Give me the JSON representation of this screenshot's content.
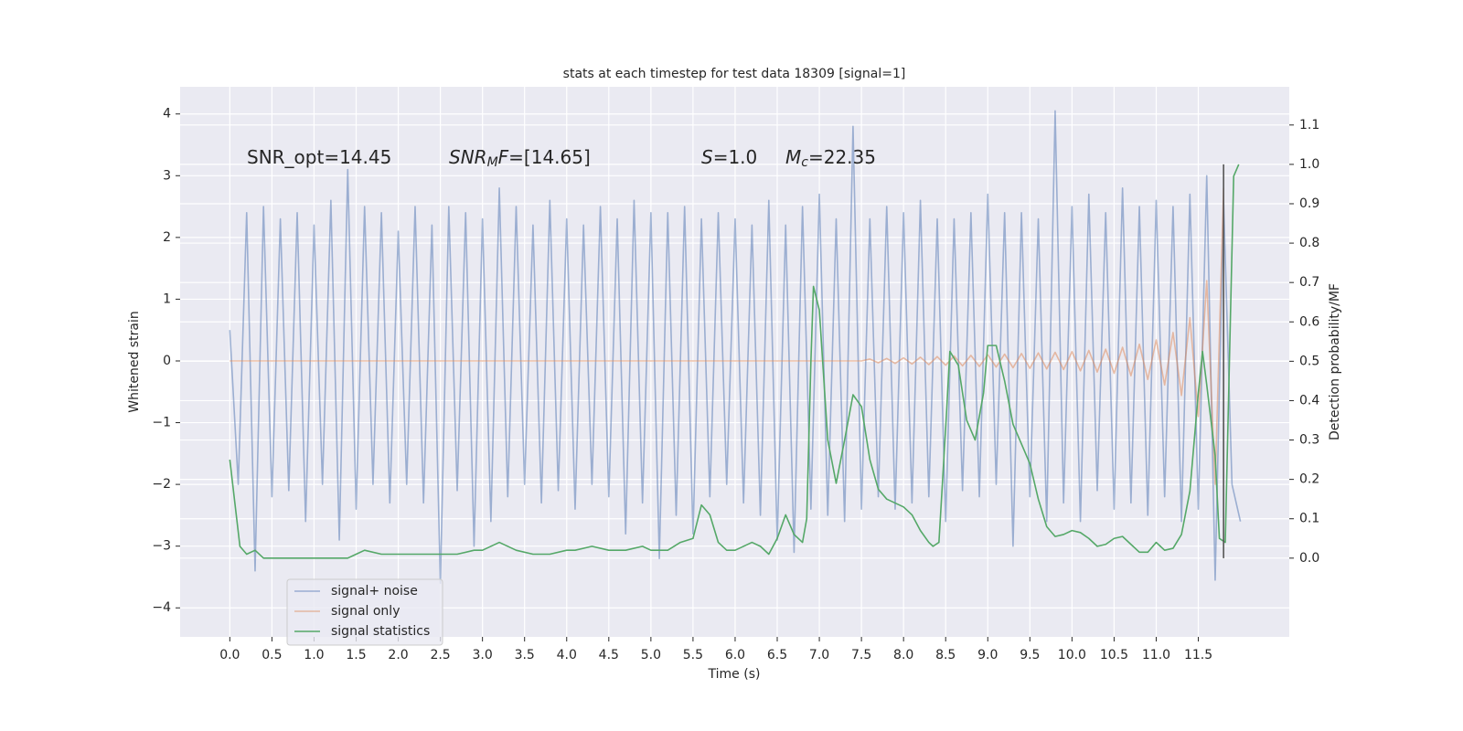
{
  "chart_data": {
    "type": "line",
    "title": "stats at each timestep for test data 18309 [signal=1]",
    "xlabel": "Time (s)",
    "ylabel": "Whitened strain",
    "y2label": "Detection probability/MF",
    "grid": true,
    "legend": "lower left",
    "xlim": [
      -0.59,
      12.58
    ],
    "ylim": [
      -4.47,
      4.44
    ],
    "y2lim": [
      -0.2,
      1.197
    ],
    "xticks": [
      {
        "value": 0,
        "label": "0.0"
      },
      0.5,
      {
        "value": 1,
        "label": "1.0"
      },
      1.5,
      {
        "value": 2,
        "label": "2.0"
      },
      2.5,
      {
        "value": 3,
        "label": "3.0"
      },
      3.5,
      {
        "value": 4,
        "label": "4.0"
      },
      4.5,
      {
        "value": 5,
        "label": "5.0"
      },
      5.5,
      {
        "value": 6,
        "label": "6.0"
      },
      6.5,
      {
        "value": 7,
        "label": "7.0"
      },
      7.5,
      {
        "value": 8,
        "label": "8.0"
      },
      8.5,
      {
        "value": 9,
        "label": "9.0"
      },
      9.5,
      {
        "value": 10,
        "label": "10.0"
      },
      10.5,
      {
        "value": 11,
        "label": "11.0"
      },
      11.5
    ],
    "yticks": [
      {
        "value": -4,
        "label": "−4"
      },
      {
        "value": -3,
        "label": "−3"
      },
      {
        "value": -2,
        "label": "−2"
      },
      {
        "value": -1,
        "label": "−1"
      },
      0,
      1,
      2,
      3,
      4
    ],
    "y2ticks": [
      {
        "value": 0,
        "label": "0.0"
      },
      0.1,
      0.2,
      0.3,
      0.4,
      0.5,
      0.6,
      0.7,
      0.8,
      0.9,
      {
        "value": 1,
        "label": "1.0"
      },
      1.1
    ],
    "annotations": [
      [
        {
          "text": "SNR_opt=14.45"
        }
      ],
      [
        {
          "text": "SNR",
          "style": "italic"
        },
        {
          "text": "M",
          "style": "italic-sub"
        },
        {
          "text": "F",
          "style": "italic"
        },
        {
          "text": "=[14.65]"
        }
      ],
      [
        {
          "text": "S",
          "style": "italic"
        },
        {
          "text": "=1.0"
        }
      ],
      [
        {
          "text": "M",
          "style": "italic"
        },
        {
          "text": "c",
          "style": "italic-sub"
        },
        {
          "text": "=22.35"
        }
      ]
    ],
    "vline": {
      "x": 11.8,
      "y2_range": [
        0,
        1
      ],
      "color": "#555555"
    },
    "series": [
      {
        "name": "signal+ noise",
        "color": "#4c72b0",
        "alpha": 0.5,
        "x": [
          0.0,
          0.1,
          0.2,
          0.3,
          0.4,
          0.5,
          0.6,
          0.7,
          0.8,
          0.9,
          1.0,
          1.1,
          1.2,
          1.3,
          1.4,
          1.5,
          1.6,
          1.7,
          1.8,
          1.9,
          2.0,
          2.1,
          2.2,
          2.3,
          2.4,
          2.5,
          2.6,
          2.7,
          2.8,
          2.9,
          3.0,
          3.1,
          3.2,
          3.3,
          3.4,
          3.5,
          3.6,
          3.7,
          3.8,
          3.9,
          4.0,
          4.1,
          4.2,
          4.3,
          4.4,
          4.5,
          4.6,
          4.7,
          4.8,
          4.9,
          5.0,
          5.1,
          5.2,
          5.3,
          5.4,
          5.5,
          5.6,
          5.7,
          5.8,
          5.9,
          6.0,
          6.1,
          6.2,
          6.3,
          6.4,
          6.5,
          6.6,
          6.7,
          6.8,
          6.9,
          7.0,
          7.1,
          7.2,
          7.3,
          7.4,
          7.5,
          7.6,
          7.7,
          7.8,
          7.9,
          8.0,
          8.1,
          8.2,
          8.3,
          8.4,
          8.5,
          8.6,
          8.7,
          8.8,
          8.9,
          9.0,
          9.1,
          9.2,
          9.3,
          9.4,
          9.5,
          9.6,
          9.7,
          9.8,
          9.9,
          10.0,
          10.1,
          10.2,
          10.3,
          10.4,
          10.5,
          10.6,
          10.7,
          10.8,
          10.9,
          11.0,
          11.1,
          11.2,
          11.3,
          11.4,
          11.5,
          11.6,
          11.7,
          11.8,
          11.9,
          12.0
        ],
        "values": [
          0.5,
          -2.0,
          2.4,
          -3.4,
          2.5,
          -2.2,
          2.3,
          -2.1,
          2.4,
          -2.6,
          2.2,
          -2.0,
          2.6,
          -2.9,
          3.1,
          -2.4,
          2.5,
          -2.0,
          2.4,
          -2.3,
          2.1,
          -2.0,
          2.5,
          -2.3,
          2.2,
          -3.6,
          2.5,
          -2.1,
          2.4,
          -3.0,
          2.3,
          -2.6,
          2.8,
          -2.2,
          2.5,
          -2.0,
          2.2,
          -2.3,
          2.6,
          -2.1,
          2.3,
          -2.4,
          2.2,
          -2.0,
          2.5,
          -2.2,
          2.3,
          -2.8,
          2.6,
          -2.3,
          2.4,
          -3.2,
          2.4,
          -2.5,
          2.5,
          -2.8,
          2.3,
          -2.2,
          2.4,
          -2.0,
          2.3,
          -2.3,
          2.2,
          -2.5,
          2.6,
          -2.9,
          2.2,
          -3.1,
          2.5,
          -2.4,
          2.7,
          -2.5,
          2.3,
          -2.6,
          3.8,
          -2.4,
          2.3,
          -2.2,
          2.5,
          -2.4,
          2.4,
          -2.3,
          2.6,
          -2.2,
          2.3,
          -2.6,
          2.3,
          -2.1,
          2.4,
          -2.2,
          2.7,
          -2.0,
          2.4,
          -3.0,
          2.4,
          -2.2,
          2.3,
          -2.6,
          4.05,
          -2.3,
          2.5,
          -2.6,
          2.7,
          -2.1,
          2.4,
          -2.4,
          2.8,
          -2.3,
          2.5,
          -2.5,
          2.6,
          -2.2,
          2.5,
          -2.6,
          2.7,
          -2.4,
          3.0,
          -3.55,
          2.6,
          -2.0,
          -2.6
        ]
      },
      {
        "name": "signal only",
        "color": "#dd8452",
        "alpha": 0.5,
        "x": [
          0.0,
          7.5,
          7.6,
          7.7,
          7.8,
          7.9,
          8.0,
          8.1,
          8.2,
          8.3,
          8.4,
          8.5,
          8.6,
          8.7,
          8.8,
          8.9,
          9.0,
          9.1,
          9.2,
          9.3,
          9.4,
          9.5,
          9.6,
          9.7,
          9.8,
          9.9,
          10.0,
          10.1,
          10.2,
          10.3,
          10.4,
          10.5,
          10.6,
          10.7,
          10.8,
          10.9,
          11.0,
          11.1,
          11.2,
          11.3,
          11.4,
          11.5,
          11.6,
          11.7,
          11.8
        ],
        "values": [
          0,
          0,
          0.03,
          -0.03,
          0.04,
          -0.04,
          0.05,
          -0.05,
          0.06,
          -0.06,
          0.07,
          -0.07,
          0.08,
          -0.08,
          0.09,
          -0.09,
          0.1,
          -0.1,
          0.11,
          -0.11,
          0.12,
          -0.12,
          0.13,
          -0.13,
          0.14,
          -0.14,
          0.15,
          -0.16,
          0.17,
          -0.18,
          0.19,
          -0.2,
          0.22,
          -0.24,
          0.27,
          -0.3,
          0.34,
          -0.39,
          0.46,
          -0.56,
          0.7,
          -0.9,
          1.3,
          -2.0,
          2.8
        ]
      },
      {
        "name": "signal statistics",
        "color": "#55a868",
        "alpha": 1,
        "axis": "y2",
        "x": [
          0.0,
          0.12,
          0.2,
          0.3,
          0.4,
          0.6,
          0.8,
          1.0,
          1.2,
          1.4,
          1.5,
          1.6,
          1.8,
          2.0,
          2.2,
          2.5,
          2.7,
          2.9,
          3.0,
          3.2,
          3.4,
          3.6,
          3.8,
          4.0,
          4.1,
          4.3,
          4.5,
          4.7,
          4.9,
          5.0,
          5.2,
          5.35,
          5.5,
          5.6,
          5.7,
          5.8,
          5.9,
          6.0,
          6.2,
          6.3,
          6.4,
          6.5,
          6.6,
          6.7,
          6.8,
          6.85,
          6.9,
          6.93,
          7.0,
          7.1,
          7.2,
          7.3,
          7.4,
          7.5,
          7.6,
          7.7,
          7.8,
          8.0,
          8.1,
          8.2,
          8.3,
          8.35,
          8.42,
          8.5,
          8.55,
          8.65,
          8.75,
          8.85,
          8.95,
          9.0,
          9.1,
          9.2,
          9.3,
          9.4,
          9.5,
          9.6,
          9.7,
          9.8,
          9.9,
          10.0,
          10.1,
          10.2,
          10.3,
          10.4,
          10.5,
          10.6,
          10.7,
          10.8,
          10.9,
          11.0,
          11.05,
          11.1,
          11.2,
          11.3,
          11.4,
          11.5,
          11.55,
          11.6,
          11.7,
          11.75,
          11.82,
          11.88,
          11.92,
          11.98
        ],
        "values": [
          0.25,
          0.03,
          0.01,
          0.02,
          0.0,
          0.0,
          0.0,
          0.0,
          0.0,
          0.0,
          0.01,
          0.02,
          0.01,
          0.01,
          0.01,
          0.01,
          0.01,
          0.02,
          0.02,
          0.04,
          0.02,
          0.01,
          0.01,
          0.02,
          0.02,
          0.03,
          0.02,
          0.02,
          0.03,
          0.02,
          0.02,
          0.04,
          0.05,
          0.135,
          0.11,
          0.04,
          0.02,
          0.02,
          0.04,
          0.03,
          0.01,
          0.05,
          0.11,
          0.06,
          0.04,
          0.1,
          0.5,
          0.69,
          0.63,
          0.3,
          0.19,
          0.3,
          0.415,
          0.385,
          0.25,
          0.175,
          0.15,
          0.13,
          0.11,
          0.07,
          0.04,
          0.03,
          0.04,
          0.33,
          0.525,
          0.49,
          0.35,
          0.3,
          0.42,
          0.54,
          0.54,
          0.45,
          0.34,
          0.29,
          0.24,
          0.15,
          0.08,
          0.055,
          0.06,
          0.07,
          0.065,
          0.05,
          0.03,
          0.035,
          0.05,
          0.055,
          0.035,
          0.015,
          0.015,
          0.04,
          0.03,
          0.02,
          0.025,
          0.06,
          0.17,
          0.42,
          0.525,
          0.44,
          0.26,
          0.05,
          0.04,
          0.6,
          0.97,
          1.0
        ]
      }
    ]
  }
}
